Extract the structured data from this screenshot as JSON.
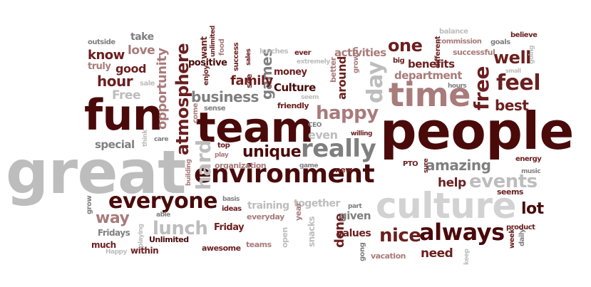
{
  "colors": {
    "dark": "#4a0a0a",
    "maroon": "#6b1f1f",
    "red": "#8e2b2b",
    "mauve": "#a97b7b",
    "gray": "#7f7f7f",
    "light": "#bdbdbd",
    "pale": "#d2d2d2"
  },
  "words": [
    {
      "text": "people",
      "color": "dark"
    },
    {
      "text": "great",
      "color": "light"
    },
    {
      "text": "team",
      "color": "dark"
    },
    {
      "text": "fun",
      "color": "dark"
    },
    {
      "text": "culture",
      "color": "pale"
    },
    {
      "text": "environment",
      "color": "dark"
    },
    {
      "text": "time",
      "color": "mauve"
    },
    {
      "text": "really",
      "color": "gray"
    },
    {
      "text": "everyone",
      "color": "dark"
    },
    {
      "text": "always",
      "color": "dark"
    },
    {
      "text": "atmosphere",
      "color": "maroon"
    },
    {
      "text": "free",
      "color": "maroon"
    },
    {
      "text": "day",
      "color": "light"
    },
    {
      "text": "feel",
      "color": "maroon"
    },
    {
      "text": "happy",
      "color": "mauve"
    },
    {
      "text": "lunch",
      "color": "light"
    },
    {
      "text": "unique",
      "color": "dark"
    },
    {
      "text": "hard",
      "color": "light"
    },
    {
      "text": "nice",
      "color": "maroon"
    },
    {
      "text": "events",
      "color": "light"
    },
    {
      "text": "one",
      "color": "maroon"
    },
    {
      "text": "well",
      "color": "maroon"
    },
    {
      "text": "business",
      "color": "gray"
    },
    {
      "text": "opportunity",
      "color": "mauve"
    },
    {
      "text": "best",
      "color": "maroon"
    },
    {
      "text": "amazing",
      "color": "gray"
    },
    {
      "text": "lot",
      "color": "dark"
    },
    {
      "text": "way",
      "color": "mauve"
    },
    {
      "text": "hour",
      "color": "maroon"
    },
    {
      "text": "games",
      "color": "gray"
    },
    {
      "text": "family",
      "color": "maroon"
    },
    {
      "text": "know",
      "color": "maroon"
    },
    {
      "text": "good",
      "color": "maroon"
    },
    {
      "text": "help",
      "color": "maroon"
    },
    {
      "text": "love",
      "color": "mauve"
    },
    {
      "text": "need",
      "color": "maroon"
    },
    {
      "text": "done",
      "color": "maroon"
    },
    {
      "text": "around",
      "color": "maroon"
    },
    {
      "text": "even",
      "color": "light"
    },
    {
      "text": "Culture",
      "color": "dark"
    },
    {
      "text": "activities",
      "color": "mauve"
    },
    {
      "text": "department",
      "color": "mauve"
    },
    {
      "text": "benefits",
      "color": "maroon"
    },
    {
      "text": "special",
      "color": "gray"
    },
    {
      "text": "Free",
      "color": "light"
    },
    {
      "text": "take",
      "color": "gray"
    },
    {
      "text": "truly",
      "color": "mauve"
    },
    {
      "text": "positive",
      "color": "dark"
    },
    {
      "text": "money",
      "color": "maroon"
    },
    {
      "text": "given",
      "color": "gray"
    },
    {
      "text": "values",
      "color": "maroon"
    },
    {
      "text": "training",
      "color": "light"
    },
    {
      "text": "together",
      "color": "light"
    },
    {
      "text": "Friday",
      "color": "maroon"
    },
    {
      "text": "Fridays",
      "color": "gray"
    },
    {
      "text": "much",
      "color": "maroon"
    },
    {
      "text": "within",
      "color": "maroon"
    },
    {
      "text": "Unlimited",
      "color": "dark"
    },
    {
      "text": "awesome",
      "color": "maroon"
    },
    {
      "text": "teams",
      "color": "mauve"
    },
    {
      "text": "vacation",
      "color": "mauve"
    },
    {
      "text": "seems",
      "color": "maroon"
    },
    {
      "text": "successful",
      "color": "mauve"
    },
    {
      "text": "commission",
      "color": "mauve"
    },
    {
      "text": "goals",
      "color": "gray"
    },
    {
      "text": "believe",
      "color": "maroon"
    },
    {
      "text": "balance",
      "color": "light"
    },
    {
      "text": "different",
      "color": "maroon"
    },
    {
      "text": "big",
      "color": "maroon"
    },
    {
      "text": "growth",
      "color": "mauve"
    },
    {
      "text": "better",
      "color": "mauve"
    },
    {
      "text": "friendly",
      "color": "maroon"
    },
    {
      "text": "ever",
      "color": "maroon"
    },
    {
      "text": "extremely",
      "color": "light"
    },
    {
      "text": "lunches",
      "color": "light"
    },
    {
      "text": "sales",
      "color": "maroon"
    },
    {
      "text": "success",
      "color": "maroon"
    },
    {
      "text": "see",
      "color": "maroon"
    },
    {
      "text": "want",
      "color": "maroon"
    },
    {
      "text": "unlimited",
      "color": "maroon"
    },
    {
      "text": "food",
      "color": "mauve"
    },
    {
      "text": "enjoy",
      "color": "maroon"
    },
    {
      "text": "come",
      "color": "mauve"
    },
    {
      "text": "outside",
      "color": "gray"
    },
    {
      "text": "sale",
      "color": "light"
    },
    {
      "text": "sense",
      "color": "gray"
    },
    {
      "text": "seem",
      "color": "light"
    },
    {
      "text": "CEO",
      "color": "gray"
    },
    {
      "text": "willing",
      "color": "maroon"
    },
    {
      "text": "top",
      "color": "maroon"
    },
    {
      "text": "play",
      "color": "mauve"
    },
    {
      "text": "organization",
      "color": "mauve"
    },
    {
      "text": "game",
      "color": "gray"
    },
    {
      "text": "new",
      "color": "maroon"
    },
    {
      "text": "PTO",
      "color": "maroon"
    },
    {
      "text": "sure",
      "color": "maroon"
    },
    {
      "text": "energy",
      "color": "maroon"
    },
    {
      "text": "music",
      "color": "gray"
    },
    {
      "text": "building",
      "color": "mauve"
    },
    {
      "text": "care",
      "color": "gray"
    },
    {
      "text": "think",
      "color": "light"
    },
    {
      "text": "basis",
      "color": "gray"
    },
    {
      "text": "ideas",
      "color": "maroon"
    },
    {
      "text": "everyday",
      "color": "mauve"
    },
    {
      "text": "part",
      "color": "gray"
    },
    {
      "text": "year",
      "color": "mauve"
    },
    {
      "text": "open",
      "color": "light"
    },
    {
      "text": "snacks",
      "color": "light"
    },
    {
      "text": "grow",
      "color": "gray"
    },
    {
      "text": "able",
      "color": "gray"
    },
    {
      "text": "playing",
      "color": "light"
    },
    {
      "text": "Happy",
      "color": "light"
    },
    {
      "text": "gong",
      "color": "gray"
    },
    {
      "text": "keep",
      "color": "light"
    },
    {
      "text": "week",
      "color": "maroon"
    },
    {
      "text": "daily",
      "color": "gray"
    },
    {
      "text": "product",
      "color": "maroon"
    },
    {
      "text": "hours",
      "color": "gray"
    },
    {
      "text": "small",
      "color": "light"
    },
    {
      "text": "going",
      "color": "light"
    }
  ]
}
